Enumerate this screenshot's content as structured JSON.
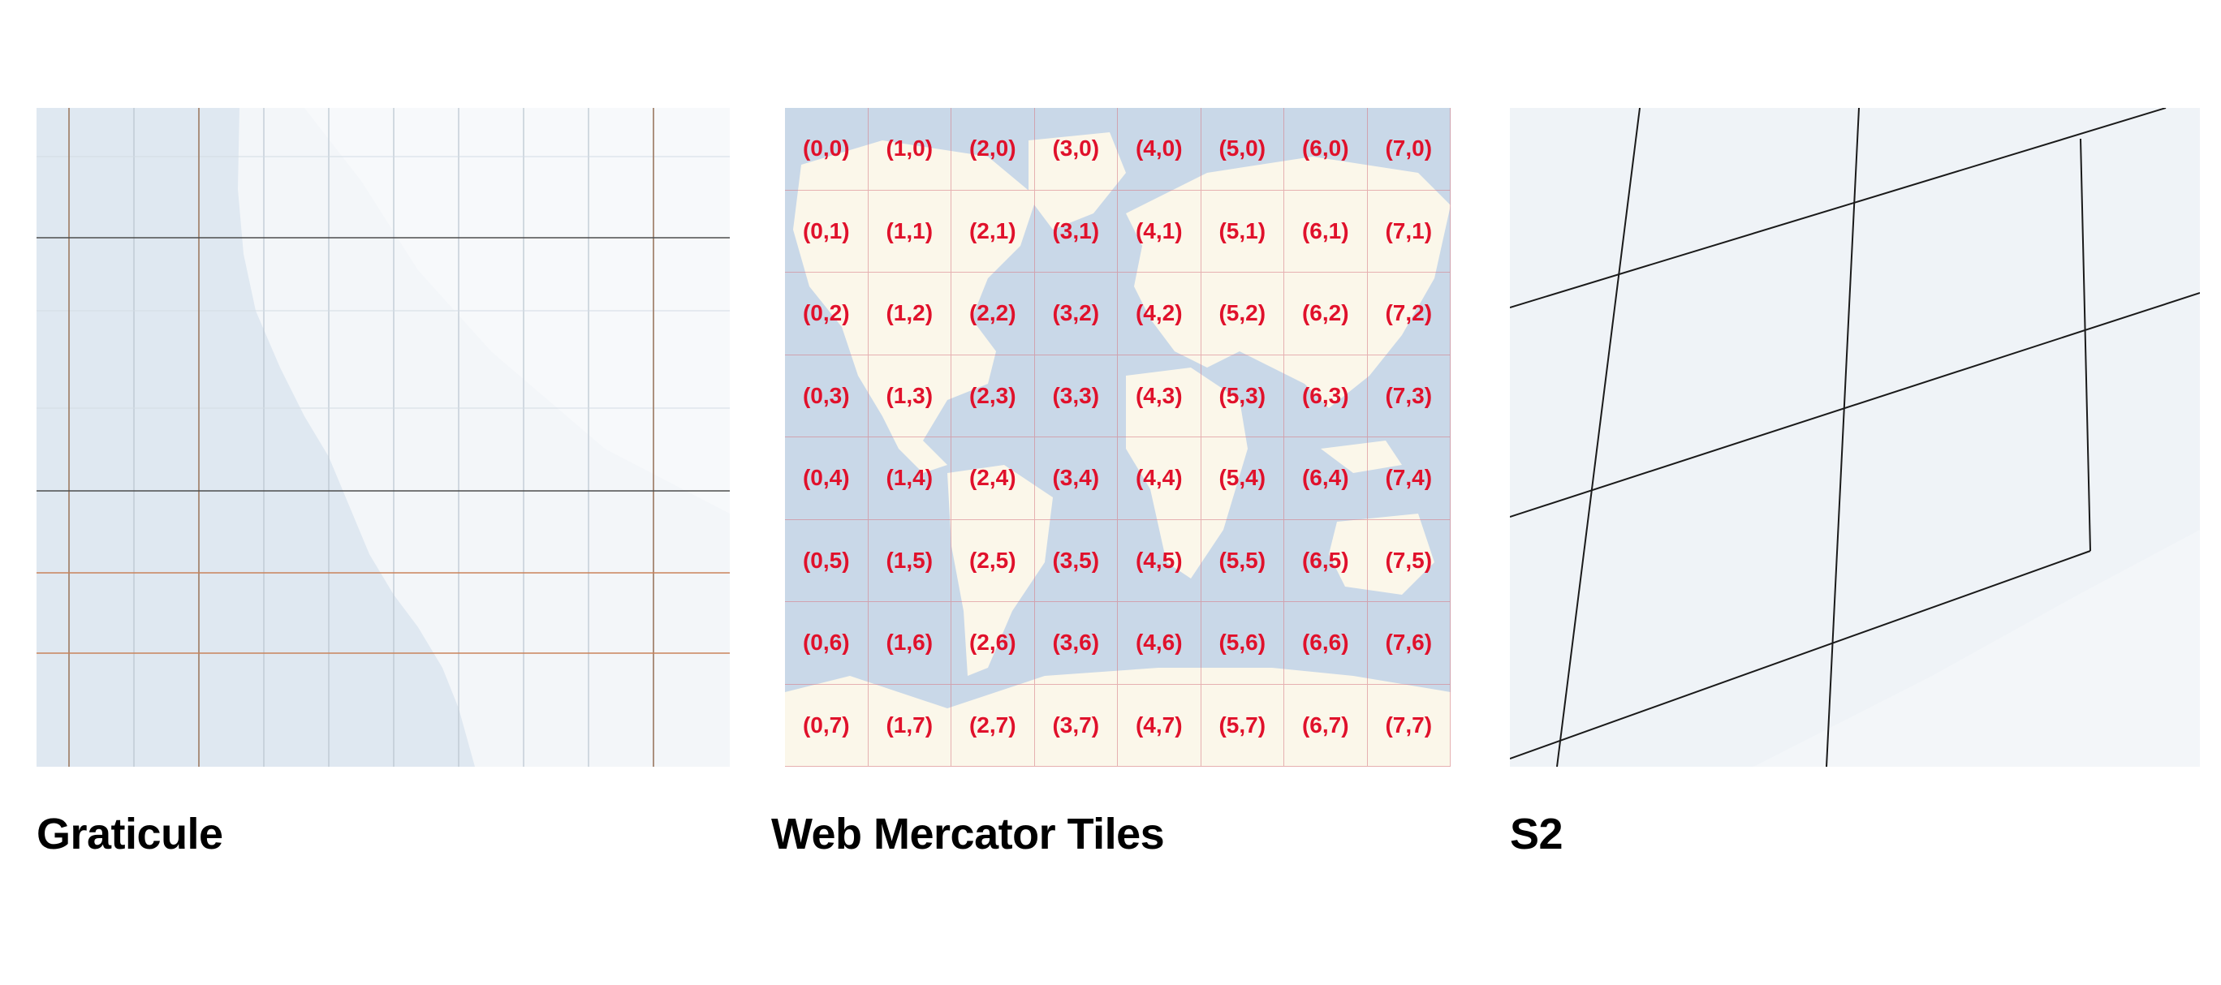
{
  "captions": {
    "graticule": "Graticule",
    "mercator": "Web Mercator Tiles",
    "s2": "S2"
  },
  "tiles": {
    "columns": 8,
    "rows": 8,
    "label_color": "#e0112b",
    "rows_labels": [
      [
        "(0,0)",
        "(1,0)",
        "(2,0)",
        "(3,0)",
        "(4,0)",
        "(5,0)",
        "(6,0)",
        "(7,0)"
      ],
      [
        "(0,1)",
        "(1,1)",
        "(2,1)",
        "(3,1)",
        "(4,1)",
        "(5,1)",
        "(6,1)",
        "(7,1)"
      ],
      [
        "(0,2)",
        "(1,2)",
        "(2,2)",
        "(3,2)",
        "(4,2)",
        "(5,2)",
        "(6,2)",
        "(7,2)"
      ],
      [
        "(0,3)",
        "(1,3)",
        "(2,3)",
        "(3,3)",
        "(4,3)",
        "(5,3)",
        "(6,3)",
        "(7,3)"
      ],
      [
        "(0,4)",
        "(1,4)",
        "(2,4)",
        "(3,4)",
        "(4,4)",
        "(5,4)",
        "(6,4)",
        "(7,4)"
      ],
      [
        "(0,5)",
        "(1,5)",
        "(2,5)",
        "(3,5)",
        "(4,5)",
        "(5,5)",
        "(6,5)",
        "(7,5)"
      ],
      [
        "(0,6)",
        "(1,6)",
        "(2,6)",
        "(3,6)",
        "(4,6)",
        "(5,6)",
        "(6,6)",
        "(7,6)"
      ],
      [
        "(0,7)",
        "(1,7)",
        "(2,7)",
        "(3,7)",
        "(4,7)",
        "(5,7)",
        "(6,7)",
        "(7,7)"
      ]
    ]
  },
  "colors": {
    "ocean": "#c9d8e8",
    "land": "#fbf7ea",
    "map_light": "#eef3f8",
    "graticule_dark": "#5a5a5a",
    "graticule_orange": "#c9835a",
    "caption_text": "#000000"
  }
}
